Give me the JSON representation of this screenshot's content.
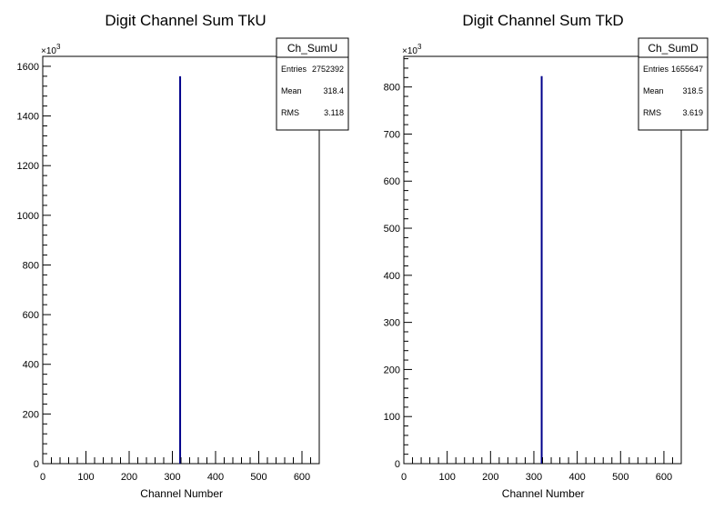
{
  "chart_data": [
    {
      "type": "bar",
      "title": "Digit Channel Sum TkU",
      "xlabel": "Channel Number",
      "ylabel": "",
      "y_multiplier_label": "×10",
      "y_multiplier_exp": "3",
      "xlim": [
        0,
        640
      ],
      "ylim": [
        0,
        1640
      ],
      "x_ticks": [
        0,
        100,
        200,
        300,
        400,
        500,
        600
      ],
      "y_ticks": [
        0,
        200,
        400,
        600,
        800,
        1000,
        1200,
        1400,
        1600
      ],
      "series": [
        {
          "x": [
            318
          ],
          "values": [
            1560
          ]
        }
      ],
      "line_color": "#00008b",
      "stats": {
        "name": "Ch_SumU",
        "rows": [
          {
            "label": "Entries",
            "value": "2752392"
          },
          {
            "label": "Mean",
            "value": "318.4"
          },
          {
            "label": "RMS",
            "value": "3.118"
          }
        ]
      },
      "legend_position": "top-right",
      "grid": false
    },
    {
      "type": "bar",
      "title": "Digit Channel Sum TkD",
      "xlabel": "Channel Number",
      "ylabel": "",
      "y_multiplier_label": "×10",
      "y_multiplier_exp": "3",
      "xlim": [
        0,
        640
      ],
      "ylim": [
        0,
        865
      ],
      "x_ticks": [
        0,
        100,
        200,
        300,
        400,
        500,
        600
      ],
      "y_ticks": [
        0,
        100,
        200,
        300,
        400,
        500,
        600,
        700,
        800
      ],
      "series": [
        {
          "x": [
            318
          ],
          "values": [
            823
          ]
        }
      ],
      "line_color": "#00008b",
      "stats": {
        "name": "Ch_SumD",
        "rows": [
          {
            "label": "Entries",
            "value": "1655647"
          },
          {
            "label": "Mean",
            "value": "318.5"
          },
          {
            "label": "RMS",
            "value": "3.619"
          }
        ]
      },
      "legend_position": "top-right",
      "grid": false
    }
  ]
}
